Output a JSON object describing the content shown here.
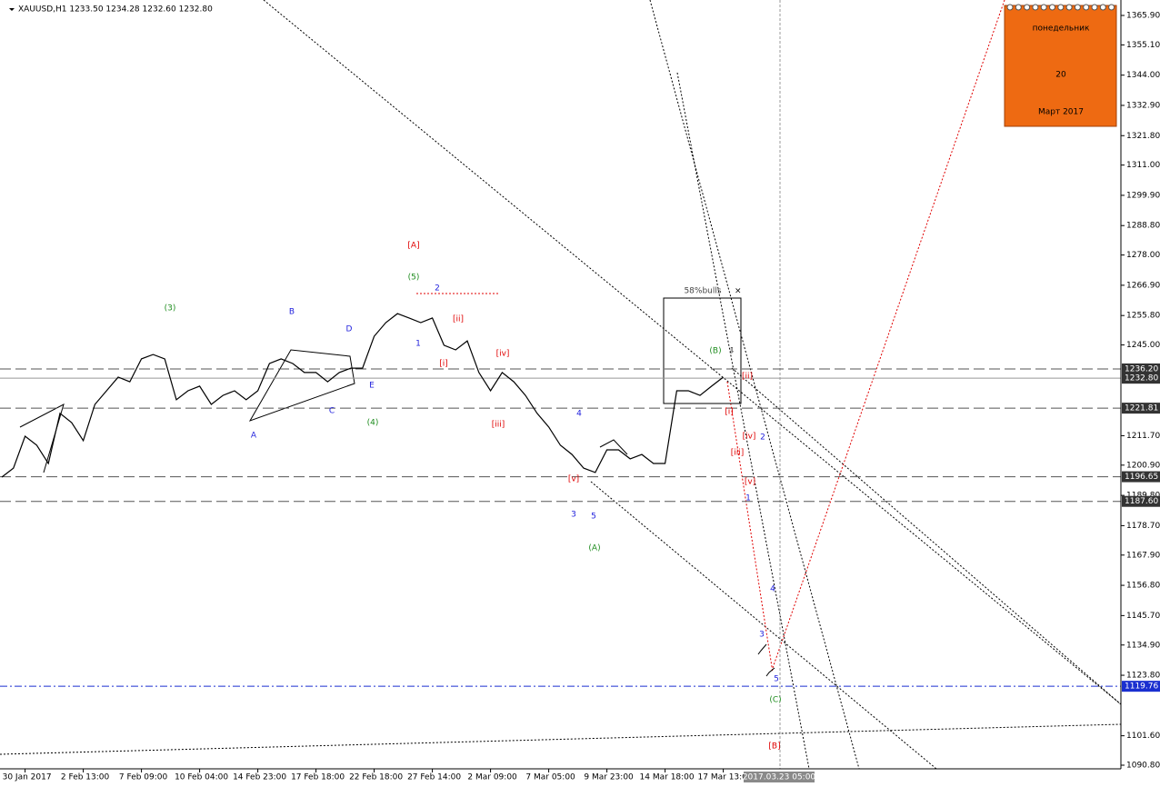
{
  "chart_data": {
    "type": "line",
    "title": "XAUUSD,H1  1233.50 1234.28 1232.60 1232.80",
    "categories": [
      null,
      null,
      "30 Jan 2017",
      null,
      null,
      null,
      null,
      "2 Feb 13:00",
      null,
      null,
      null,
      null,
      "7 Feb 09:00",
      null,
      null,
      null,
      null,
      "10 Feb 04:00",
      null,
      null,
      null,
      null,
      "14 Feb 23:00",
      null,
      null,
      null,
      null,
      "17 Feb 18:00",
      null,
      null,
      null,
      null,
      "22 Feb 18:00",
      null,
      null,
      null,
      null,
      "27 Feb 14:00",
      null,
      null,
      null,
      null,
      "2 Mar 09:00",
      null,
      null,
      null,
      null,
      "7 Mar 05:00",
      null,
      null,
      null,
      null,
      "9 Mar 23:00",
      null,
      null,
      null,
      null,
      "14 Mar 18:00",
      null,
      null,
      null,
      null,
      "17 Mar 13:00"
    ],
    "series": [
      {
        "name": "XAUUSD",
        "color": "#000000",
        "values": [
          1196.5,
          1199.8,
          1211.5,
          1208.2,
          1201.5,
          1219.9,
          1216.5,
          1209.9,
          1223.2,
          1228.2,
          1233.2,
          1231.5,
          1239.9,
          1241.5,
          1239.9,
          1224.9,
          1228.2,
          1229.9,
          1223.2,
          1226.5,
          1228.2,
          1224.9,
          1228.2,
          1238.2,
          1239.9,
          1238.2,
          1234.9,
          1234.9,
          1231.5,
          1234.9,
          1236.5,
          1236.5,
          1248.2,
          1253.2,
          1256.5,
          1254.9,
          1253.2,
          1254.9,
          1244.9,
          1243.2,
          1246.5,
          1234.9,
          1228.2,
          1234.9,
          1231.5,
          1226.5,
          1219.9,
          1214.9,
          1208.2,
          1204.8,
          1199.8,
          1198.2,
          1206.5,
          1206.5,
          1203.2,
          1204.8,
          1201.5,
          1201.5,
          1228.2,
          1228.2,
          1226.5,
          1229.9,
          1233.2
        ]
      }
    ],
    "ylim": [
      1089.47,
      1371.57
    ],
    "yticks": [
      {
        "value": 1365.9,
        "label": "1365.90"
      },
      {
        "value": 1355.1,
        "label": "1355.10"
      },
      {
        "value": 1344,
        "label": "1344.00"
      },
      {
        "value": 1332.9,
        "label": "1332.90"
      },
      {
        "value": 1321.8,
        "label": "1321.80"
      },
      {
        "value": 1311,
        "label": "1311.00"
      },
      {
        "value": 1299.9,
        "label": "1299.90"
      },
      {
        "value": 1288.8,
        "label": "1288.80"
      },
      {
        "value": 1278,
        "label": "1278.00"
      },
      {
        "value": 1266.9,
        "label": "1266.90"
      },
      {
        "value": 1255.8,
        "label": "1255.80"
      },
      {
        "value": 1245,
        "label": "1245.00"
      },
      {
        "value": 1211.7,
        "label": "1211.70"
      },
      {
        "value": 1200.9,
        "label": "1200.90"
      },
      {
        "value": 1189.8,
        "label": "1189.80"
      },
      {
        "value": 1178.7,
        "label": "1178.70"
      },
      {
        "value": 1167.9,
        "label": "1167.90"
      },
      {
        "value": 1156.8,
        "label": "1156.80"
      },
      {
        "value": 1145.7,
        "label": "1145.70"
      },
      {
        "value": 1134.9,
        "label": "1134.90"
      },
      {
        "value": 1123.8,
        "label": "1123.80"
      },
      {
        "value": 1101.6,
        "label": "1101.60"
      },
      {
        "value": 1090.8,
        "label": "1090.80"
      }
    ],
    "levels": [
      {
        "value": 1236.2,
        "label": "1236.20",
        "color": "#555555",
        "style": "dash"
      },
      {
        "value": 1232.8,
        "label": "1232.80",
        "color": "#999999",
        "style": "solid"
      },
      {
        "value": 1221.81,
        "label": "1221.81",
        "color": "#555555",
        "style": "dash"
      },
      {
        "value": 1196.65,
        "label": "1196.65",
        "color": "#555555",
        "style": "dash"
      },
      {
        "value": 1187.6,
        "label": "1187.60",
        "color": "#555555",
        "style": "dash"
      },
      {
        "value": 1119.76,
        "label": "1119.76",
        "color": "#1a2fd0",
        "style": "dashdot"
      }
    ],
    "annotations": [
      {
        "text": "(3)",
        "color": "#1e8c1e"
      },
      {
        "text": "B",
        "color": "#2222dd"
      },
      {
        "text": "D",
        "color": "#2222dd"
      },
      {
        "text": "[A]",
        "color": "#e00000"
      },
      {
        "text": "(5)",
        "color": "#1e8c1e"
      },
      {
        "text": "2",
        "color": "#2222dd"
      },
      {
        "text": "1",
        "color": "#2222dd"
      },
      {
        "text": "[ii]",
        "color": "#e00000"
      },
      {
        "text": "[i]",
        "color": "#e00000"
      },
      {
        "text": "[iv]",
        "color": "#e00000"
      },
      {
        "text": "[iii]",
        "color": "#e00000"
      },
      {
        "text": "E",
        "color": "#2222dd"
      },
      {
        "text": "C",
        "color": "#2222dd"
      },
      {
        "text": "(4)",
        "color": "#1e8c1e"
      },
      {
        "text": "A",
        "color": "#2222dd"
      },
      {
        "text": "4",
        "color": "#2222dd"
      },
      {
        "text": "[v]",
        "color": "#e00000"
      },
      {
        "text": "3",
        "color": "#2222dd"
      },
      {
        "text": "5",
        "color": "#2222dd"
      },
      {
        "text": "(A)",
        "color": "#1e8c1e"
      },
      {
        "text": "(B)",
        "color": "#1e8c1e"
      },
      {
        "text": "[ii]",
        "color": "#e00000"
      },
      {
        "text": "[i]",
        "color": "#e00000"
      },
      {
        "text": "[iv]",
        "color": "#e00000"
      },
      {
        "text": "2",
        "color": "#2222dd"
      },
      {
        "text": "[iii]",
        "color": "#e00000"
      },
      {
        "text": "[v]",
        "color": "#e00000"
      },
      {
        "text": "1",
        "color": "#2222dd"
      },
      {
        "text": "4",
        "color": "#2222dd"
      },
      {
        "text": "3",
        "color": "#2222dd"
      },
      {
        "text": "5",
        "color": "#2222dd"
      },
      {
        "text": "(C)",
        "color": "#1e8c1e"
      },
      {
        "text": "[B]",
        "color": "#e00000"
      }
    ],
    "note": "58%bulls",
    "cursor_time": "2017.03.23 05:00",
    "calendar": {
      "weekday": "понедельник",
      "day": "20",
      "month": "Март 2017"
    }
  }
}
